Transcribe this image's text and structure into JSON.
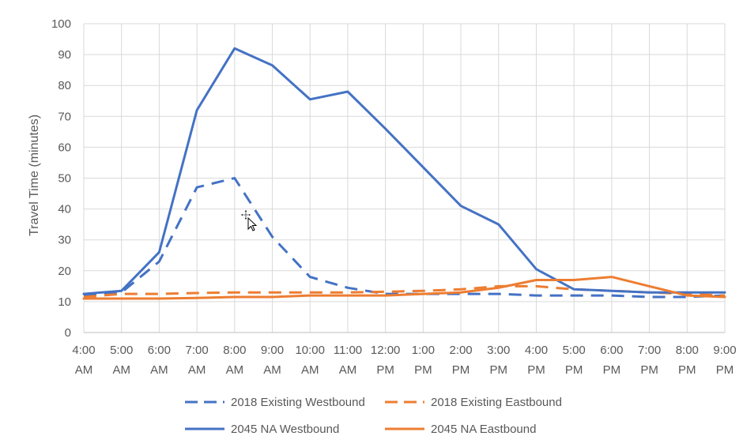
{
  "chart_data": {
    "type": "line",
    "title": "",
    "xlabel": "",
    "ylabel": "Travel Time (minutes)",
    "ylim": [
      0,
      100
    ],
    "yticks": [
      "0",
      "10",
      "20",
      "30",
      "40",
      "50",
      "60",
      "70",
      "80",
      "90",
      "100"
    ],
    "grid": true,
    "legend_position": "bottom",
    "categories": [
      [
        "4:00",
        "AM"
      ],
      [
        "5:00",
        "AM"
      ],
      [
        "6:00",
        "AM"
      ],
      [
        "7:00",
        "AM"
      ],
      [
        "8:00",
        "AM"
      ],
      [
        "9:00",
        "AM"
      ],
      [
        "10:00",
        "AM"
      ],
      [
        "11:00",
        "AM"
      ],
      [
        "12:00",
        "PM"
      ],
      [
        "1:00",
        "PM"
      ],
      [
        "2:00",
        "PM"
      ],
      [
        "3:00",
        "PM"
      ],
      [
        "4:00",
        "PM"
      ],
      [
        "5:00",
        "PM"
      ],
      [
        "6:00",
        "PM"
      ],
      [
        "7:00",
        "PM"
      ],
      [
        "8:00",
        "PM"
      ],
      [
        "9:00",
        "PM"
      ]
    ],
    "series": [
      {
        "name": "2018 Existing Westbound",
        "color": "#4472c4",
        "dash": true,
        "values": [
          12,
          13,
          23,
          47,
          50,
          31,
          18,
          14.5,
          12.5,
          12.5,
          12.5,
          12.5,
          12,
          12,
          12,
          11.5,
          11.5,
          12
        ]
      },
      {
        "name": "2018 Existing Eastbound",
        "color": "#ed7d31",
        "dash": true,
        "values": [
          11.5,
          12.5,
          12.5,
          12.8,
          13,
          13,
          13,
          13,
          13.2,
          13.5,
          14,
          15,
          15,
          14,
          13.5,
          13,
          12.5,
          12
        ]
      },
      {
        "name": "2045 NA Westbound",
        "color": "#4472c4",
        "dash": false,
        "values": [
          12.5,
          13.5,
          26,
          72,
          92,
          86.5,
          75.5,
          78,
          66,
          53.5,
          41,
          35,
          20.5,
          14,
          13.5,
          13,
          13,
          13
        ]
      },
      {
        "name": "2045 NA Eastbound",
        "color": "#ed7d31",
        "dash": false,
        "values": [
          11,
          11,
          11,
          11.2,
          11.5,
          11.5,
          12,
          12,
          12,
          12.5,
          13,
          14.5,
          17,
          17,
          18,
          15,
          12,
          11.5
        ]
      }
    ]
  }
}
